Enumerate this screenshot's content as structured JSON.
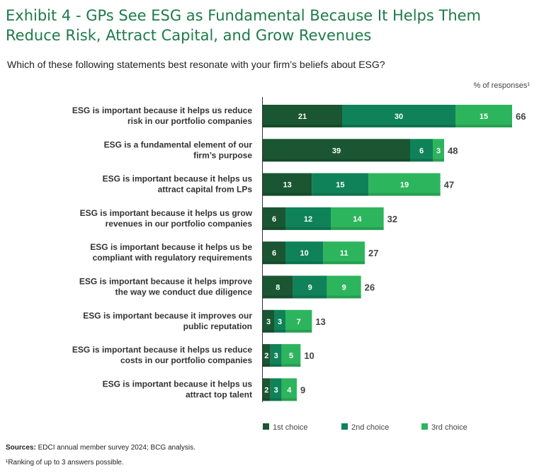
{
  "title": "Exhibit 4 - GPs See ESG as Fundamental Because It Helps Them Reduce Risk, Attract Capital, and Grow Revenues",
  "subtitle": "Which of these following statements best resonate with your firm’s beliefs about ESG?",
  "unit_label": "% of responses¹",
  "footer": {
    "sources_label": "Sources:",
    "sources_text": " EDCI annual member survey 2024; BCG analysis.",
    "note": "¹Ranking of up to 3 answers possible."
  },
  "chart_data": {
    "type": "bar",
    "orientation": "horizontal",
    "stacked": true,
    "categories": [
      [
        "ESG is important because it helps us reduce",
        "risk in our portfolio companies"
      ],
      [
        "ESG is a fundamental element of our",
        "firm’s purpose"
      ],
      [
        "ESG is important because it helps us",
        "attract capital from LPs"
      ],
      [
        "ESG is important because it helps us grow",
        "revenues in our portfolio companies"
      ],
      [
        "ESG is important because it helps us be",
        "compliant with regulatory requirements"
      ],
      [
        "ESG is important because it helps improve",
        "the way we conduct due diligence"
      ],
      [
        "ESG is important because it improves our",
        "public reputation"
      ],
      [
        "ESG is important because it helps us reduce",
        "costs in our portfolio companies"
      ],
      [
        "ESG is important because it helps us",
        "attract top talent"
      ]
    ],
    "series": [
      {
        "name": "1st choice",
        "color": "#1a5632",
        "values": [
          21,
          39,
          13,
          6,
          6,
          8,
          3,
          2,
          2
        ]
      },
      {
        "name": "2nd choice",
        "color": "#0f8259",
        "values": [
          30,
          6,
          15,
          12,
          10,
          9,
          3,
          3,
          3
        ]
      },
      {
        "name": "3rd choice",
        "color": "#2db55d",
        "values": [
          15,
          3,
          19,
          14,
          11,
          9,
          7,
          5,
          4
        ]
      }
    ],
    "totals": [
      66,
      48,
      47,
      32,
      27,
      26,
      13,
      10,
      9
    ],
    "xlim": [
      0,
      66
    ],
    "legend_position": "bottom"
  }
}
